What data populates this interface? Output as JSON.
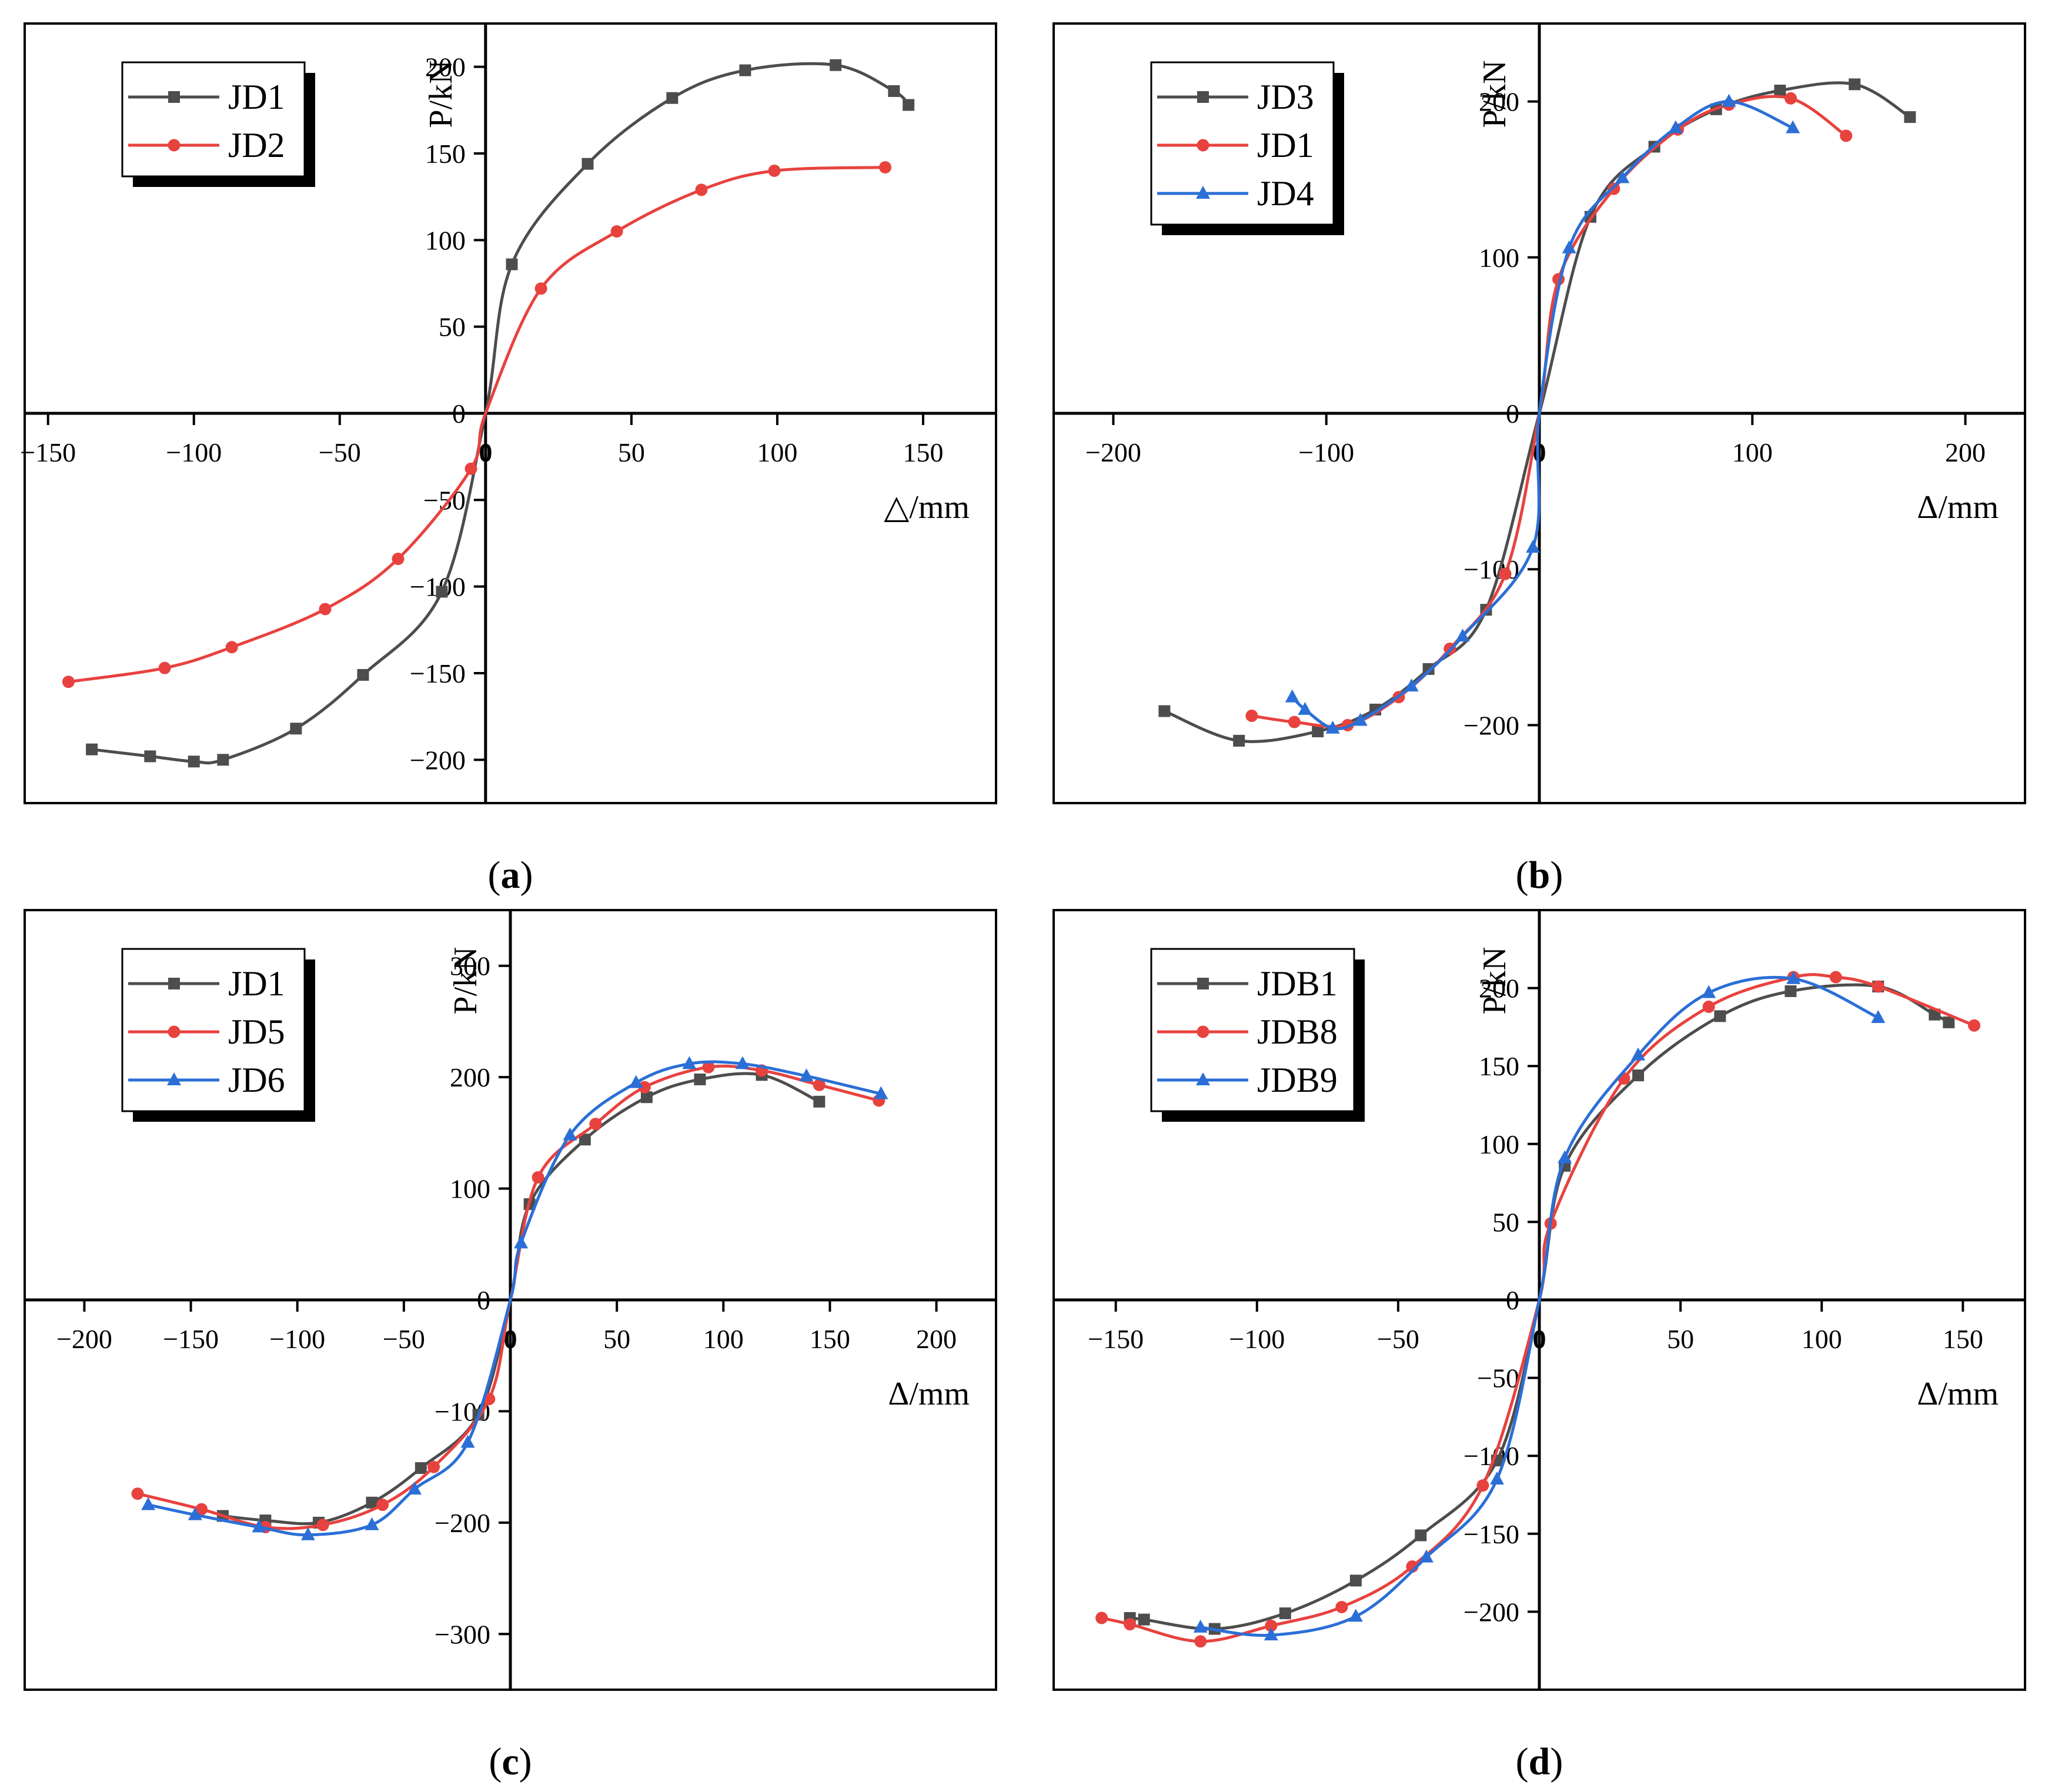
{
  "chart_data": [
    {
      "panel": "a",
      "caption": "a",
      "type": "line",
      "xlabel": "△/mm",
      "ylabel": "P/kN",
      "xlim": [
        -158,
        175
      ],
      "ylim": [
        -225,
        225
      ],
      "xticks": [
        -150,
        -100,
        -50,
        0,
        50,
        100,
        150
      ],
      "yticks": [
        -200,
        -150,
        -100,
        -50,
        0,
        50,
        100,
        150,
        200
      ],
      "legend": "top-left",
      "series": [
        {
          "name": "JD1",
          "color": "#4d4d4d",
          "marker": "square",
          "points": [
            [
              -135,
              -194
            ],
            [
              -115,
              -198
            ],
            [
              -100,
              -201
            ],
            [
              -90,
              -200
            ],
            [
              -65,
              -182
            ],
            [
              -42,
              -151
            ],
            [
              -15,
              -103
            ],
            [
              0,
              0
            ],
            [
              9,
              86
            ],
            [
              35,
              144
            ],
            [
              64,
              182
            ],
            [
              89,
              198
            ],
            [
              120,
              201
            ],
            [
              140,
              186
            ],
            [
              145,
              178
            ]
          ]
        },
        {
          "name": "JD2",
          "color": "#e8423f",
          "marker": "circle",
          "points": [
            [
              -143,
              -155
            ],
            [
              -110,
              -147
            ],
            [
              -87,
              -135
            ],
            [
              -55,
              -113
            ],
            [
              -30,
              -84
            ],
            [
              -5,
              -32
            ],
            [
              0,
              0
            ],
            [
              19,
              72
            ],
            [
              45,
              105
            ],
            [
              74,
              129
            ],
            [
              99,
              140
            ],
            [
              137,
              142
            ]
          ]
        }
      ]
    },
    {
      "panel": "b",
      "caption": "b",
      "type": "line",
      "xlabel": "Δ/mm",
      "ylabel": "P/kN",
      "xlim": [
        -228,
        228
      ],
      "ylim": [
        -250,
        250
      ],
      "xticks": [
        -200,
        -100,
        0,
        100,
        200
      ],
      "yticks": [
        -200,
        -100,
        0,
        100,
        200
      ],
      "legend": "top-left",
      "series": [
        {
          "name": "JD3",
          "color": "#4d4d4d",
          "marker": "square",
          "points": [
            [
              -176,
              -191
            ],
            [
              -141,
              -210
            ],
            [
              -104,
              -204
            ],
            [
              -77,
              -190
            ],
            [
              -52,
              -164
            ],
            [
              -25,
              -126
            ],
            [
              0,
              0
            ],
            [
              24,
              126
            ],
            [
              54,
              171
            ],
            [
              83,
              195
            ],
            [
              113,
              207
            ],
            [
              148,
              211
            ],
            [
              174,
              190
            ]
          ]
        },
        {
          "name": "JD1",
          "color": "#e8423f",
          "marker": "circle",
          "points": [
            [
              -135,
              -194
            ],
            [
              -115,
              -198
            ],
            [
              -90,
              -200
            ],
            [
              -66,
              -182
            ],
            [
              -42,
              -151
            ],
            [
              -16,
              -103
            ],
            [
              0,
              0
            ],
            [
              9,
              86
            ],
            [
              35,
              144
            ],
            [
              65,
              182
            ],
            [
              89,
              198
            ],
            [
              118,
              202
            ],
            [
              144,
              178
            ]
          ]
        },
        {
          "name": "JD4",
          "color": "#2b6fd6",
          "marker": "triangle",
          "points": [
            [
              -116,
              -182
            ],
            [
              -110,
              -190
            ],
            [
              -97,
              -202
            ],
            [
              -84,
              -197
            ],
            [
              -60,
              -175
            ],
            [
              -36,
              -143
            ],
            [
              -3,
              -86
            ],
            [
              0,
              0
            ],
            [
              14,
              106
            ],
            [
              39,
              151
            ],
            [
              64,
              183
            ],
            [
              89,
              200
            ],
            [
              119,
              183
            ]
          ]
        }
      ]
    },
    {
      "panel": "c",
      "caption": "c",
      "type": "line",
      "xlabel": "Δ/mm",
      "ylabel": "P/kN",
      "xlim": [
        -228,
        228
      ],
      "ylim": [
        -350,
        350
      ],
      "xticks": [
        -200,
        -150,
        -100,
        -50,
        0,
        50,
        100,
        150,
        200
      ],
      "yticks": [
        -300,
        -200,
        -100,
        0,
        100,
        200,
        300
      ],
      "legend": "top-left",
      "series": [
        {
          "name": "JD1",
          "color": "#4d4d4d",
          "marker": "square",
          "points": [
            [
              -135,
              -194
            ],
            [
              -115,
              -198
            ],
            [
              -90,
              -200
            ],
            [
              -65,
              -182
            ],
            [
              -42,
              -151
            ],
            [
              -15,
              -103
            ],
            [
              0,
              0
            ],
            [
              9,
              86
            ],
            [
              35,
              144
            ],
            [
              64,
              182
            ],
            [
              89,
              198
            ],
            [
              118,
              202
            ],
            [
              145,
              178
            ]
          ]
        },
        {
          "name": "JD5",
          "color": "#e8423f",
          "marker": "circle",
          "points": [
            [
              -175,
              -174
            ],
            [
              -145,
              -188
            ],
            [
              -115,
              -204
            ],
            [
              -88,
              -202
            ],
            [
              -60,
              -184
            ],
            [
              -36,
              -150
            ],
            [
              -10,
              -89
            ],
            [
              0,
              0
            ],
            [
              13,
              110
            ],
            [
              40,
              158
            ],
            [
              63,
              191
            ],
            [
              93,
              209
            ],
            [
              118,
              206
            ],
            [
              145,
              193
            ],
            [
              173,
              179
            ]
          ]
        },
        {
          "name": "JD6",
          "color": "#2b6fd6",
          "marker": "triangle",
          "points": [
            [
              -170,
              -184
            ],
            [
              -148,
              -193
            ],
            [
              -118,
              -204
            ],
            [
              -95,
              -211
            ],
            [
              -65,
              -202
            ],
            [
              -45,
              -170
            ],
            [
              -20,
              -128
            ],
            [
              0,
              0
            ],
            [
              5,
              51
            ],
            [
              28,
              148
            ],
            [
              59,
              195
            ],
            [
              84,
              212
            ],
            [
              109,
              212
            ],
            [
              139,
              201
            ],
            [
              174,
              185
            ]
          ]
        }
      ]
    },
    {
      "panel": "d",
      "caption": "d",
      "type": "line",
      "xlabel": "Δ/mm",
      "ylabel": "P/kN",
      "xlim": [
        -172,
        172
      ],
      "ylim": [
        -250,
        250
      ],
      "xticks": [
        -150,
        -100,
        -50,
        0,
        50,
        100,
        150
      ],
      "yticks": [
        -200,
        -150,
        -100,
        -50,
        0,
        50,
        100,
        150,
        200
      ],
      "legend": "top-left",
      "series": [
        {
          "name": "JDB1",
          "color": "#4d4d4d",
          "marker": "square",
          "points": [
            [
              -145,
              -204
            ],
            [
              -140,
              -205
            ],
            [
              -115,
              -211
            ],
            [
              -90,
              -201
            ],
            [
              -65,
              -180
            ],
            [
              -42,
              -151
            ],
            [
              -15,
              -103
            ],
            [
              0,
              0
            ],
            [
              9,
              86
            ],
            [
              35,
              144
            ],
            [
              64,
              182
            ],
            [
              89,
              198
            ],
            [
              120,
              201
            ],
            [
              140,
              183
            ],
            [
              145,
              178
            ]
          ]
        },
        {
          "name": "JDB8",
          "color": "#e8423f",
          "marker": "circle",
          "points": [
            [
              -155,
              -204
            ],
            [
              -145,
              -208
            ],
            [
              -120,
              -219
            ],
            [
              -95,
              -209
            ],
            [
              -70,
              -197
            ],
            [
              -45,
              -171
            ],
            [
              -20,
              -119
            ],
            [
              0,
              0
            ],
            [
              4,
              49
            ],
            [
              30,
              142
            ],
            [
              60,
              188
            ],
            [
              90,
              207
            ],
            [
              105,
              207
            ],
            [
              120,
              201
            ],
            [
              154,
              176
            ]
          ]
        },
        {
          "name": "JDB9",
          "color": "#2b6fd6",
          "marker": "triangle",
          "points": [
            [
              -120,
              -210
            ],
            [
              -95,
              -215
            ],
            [
              -65,
              -203
            ],
            [
              -40,
              -165
            ],
            [
              -15,
              -115
            ],
            [
              0,
              0
            ],
            [
              9,
              91
            ],
            [
              35,
              157
            ],
            [
              60,
              197
            ],
            [
              90,
              206
            ],
            [
              120,
              181
            ]
          ]
        }
      ]
    }
  ]
}
